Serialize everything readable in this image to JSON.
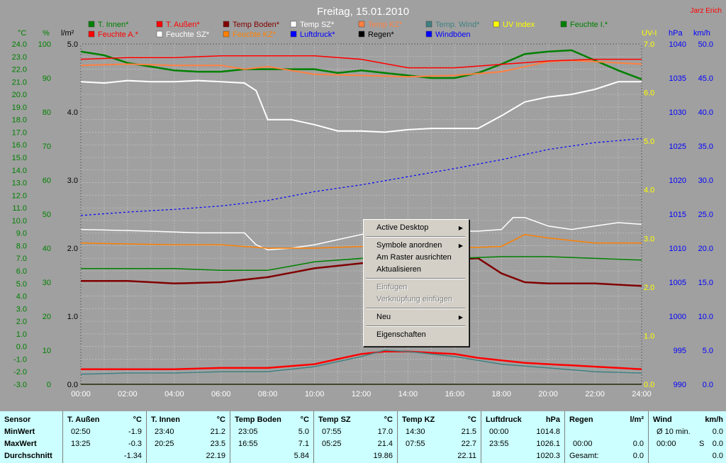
{
  "header": {
    "title": "Freitag, 15.01.2010",
    "author": "Jarz Erich"
  },
  "legend": [
    {
      "label": "T. Innen*",
      "color": "#008000"
    },
    {
      "label": "T. Außen*",
      "color": "#ff0000"
    },
    {
      "label": "Temp Boden*",
      "color": "#800000"
    },
    {
      "label": "Temp SZ*",
      "color": "#ffffff"
    },
    {
      "label": "Temp KZ*",
      "color": "#ff8040"
    },
    {
      "label": "Temp. Wind*",
      "color": "#408080"
    },
    {
      "label": "UV Index",
      "color": "#ffff00"
    },
    {
      "label": "Feuchte I.*",
      "color": "#008000"
    },
    {
      "label": "Feuchte A.*",
      "color": "#ff0000"
    },
    {
      "label": "Feuchte SZ*",
      "color": "#ffffff"
    },
    {
      "label": "Feuchte KZ*",
      "color": "#ff8000"
    },
    {
      "label": "Luftdruck*",
      "color": "#0000ff"
    },
    {
      "label": "Regen*",
      "color": "#000000"
    },
    {
      "label": "Windböen",
      "color": "#0000ff"
    }
  ],
  "axes": {
    "temp": {
      "unit": "°C",
      "color": "#008000",
      "ticks": [
        "24.0",
        "23.0",
        "22.0",
        "21.0",
        "20.0",
        "19.0",
        "18.0",
        "17.0",
        "16.0",
        "15.0",
        "14.0",
        "13.0",
        "12.0",
        "11.0",
        "10.0",
        "9.0",
        "8.0",
        "7.0",
        "6.0",
        "5.0",
        "4.0",
        "3.0",
        "2.0",
        "1.0",
        "0.0",
        "-1.0",
        "-2.0",
        "-3.0"
      ]
    },
    "humidity": {
      "unit": "%",
      "color": "#008000",
      "ticks": [
        "100",
        "90",
        "80",
        "70",
        "60",
        "50",
        "40",
        "30",
        "20",
        "10",
        "0"
      ]
    },
    "rain": {
      "unit": "l/m²",
      "color": "#000000",
      "ticks": [
        "5.0",
        "4.0",
        "3.0",
        "2.0",
        "1.0",
        "0.0"
      ]
    },
    "uv": {
      "unit": "UV-I",
      "color": "#ffff00",
      "ticks": [
        "7.0",
        "6.0",
        "5.0",
        "4.0",
        "3.0",
        "2.0",
        "1.0",
        "0.0"
      ]
    },
    "pressure": {
      "unit": "hPa",
      "color": "#0000ff",
      "ticks": [
        "1040",
        "1035",
        "1030",
        "1025",
        "1020",
        "1015",
        "1010",
        "1005",
        "1000",
        "995",
        "990"
      ]
    },
    "wind": {
      "unit": "km/h",
      "color": "#0000ff",
      "ticks": [
        "50.0",
        "45.0",
        "40.0",
        "35.0",
        "30.0",
        "25.0",
        "20.0",
        "15.0",
        "10.0",
        "5.0",
        "0.0"
      ]
    },
    "time": {
      "ticks": [
        "00:00",
        "02:00",
        "04:00",
        "06:00",
        "08:00",
        "10:00",
        "12:00",
        "14:00",
        "16:00",
        "18:00",
        "20:00",
        "22:00",
        "24:00"
      ]
    }
  },
  "chart_data": {
    "type": "line",
    "title": "Freitag, 15.01.2010",
    "x": [
      0,
      2,
      4,
      6,
      8,
      10,
      12,
      14,
      16,
      18,
      20,
      22,
      24
    ],
    "xticks": [
      "00:00",
      "02:00",
      "04:00",
      "06:00",
      "08:00",
      "10:00",
      "12:00",
      "14:00",
      "16:00",
      "18:00",
      "20:00",
      "22:00",
      "24:00"
    ],
    "xlim": [
      0,
      24
    ],
    "grid": true,
    "series": [
      {
        "name": "T. Innen*",
        "axis": "temp",
        "color": "#008000",
        "width": 2.5,
        "points": [
          [
            0,
            23.4
          ],
          [
            1,
            23.1
          ],
          [
            2,
            22.5
          ],
          [
            3,
            22.2
          ],
          [
            4,
            21.9
          ],
          [
            5,
            21.8
          ],
          [
            6,
            21.8
          ],
          [
            7,
            22.0
          ],
          [
            8,
            22.0
          ],
          [
            9,
            22.0
          ],
          [
            10,
            22.0
          ],
          [
            11,
            21.7
          ],
          [
            12,
            21.9
          ],
          [
            13,
            21.7
          ],
          [
            14,
            21.5
          ],
          [
            15,
            21.3
          ],
          [
            16,
            21.3
          ],
          [
            17,
            21.7
          ],
          [
            18,
            22.4
          ],
          [
            19,
            23.2
          ],
          [
            20,
            23.4
          ],
          [
            21,
            23.5
          ],
          [
            22,
            22.7
          ],
          [
            23,
            21.9
          ],
          [
            24,
            21.2
          ]
        ]
      },
      {
        "name": "T. Außen*",
        "axis": "temp",
        "color": "#ff0000",
        "width": 2.5,
        "points": [
          [
            0,
            -1.8
          ],
          [
            2,
            -1.8
          ],
          [
            4,
            -1.8
          ],
          [
            6,
            -1.7
          ],
          [
            8,
            -1.7
          ],
          [
            10,
            -1.4
          ],
          [
            11,
            -1.0
          ],
          [
            12,
            -0.6
          ],
          [
            13,
            -0.4
          ],
          [
            14,
            -0.4
          ],
          [
            15,
            -0.5
          ],
          [
            16,
            -0.6
          ],
          [
            17,
            -0.9
          ],
          [
            18,
            -1.1
          ],
          [
            19,
            -1.3
          ],
          [
            20,
            -1.4
          ],
          [
            21,
            -1.5
          ],
          [
            22,
            -1.6
          ],
          [
            23,
            -1.7
          ],
          [
            24,
            -1.8
          ]
        ]
      },
      {
        "name": "Temp Boden*",
        "axis": "temp",
        "color": "#800000",
        "width": 2.5,
        "points": [
          [
            0,
            5.2
          ],
          [
            2,
            5.2
          ],
          [
            4,
            5.0
          ],
          [
            6,
            5.1
          ],
          [
            8,
            5.5
          ],
          [
            10,
            6.2
          ],
          [
            12,
            6.6
          ],
          [
            14,
            6.7
          ],
          [
            16,
            6.9
          ],
          [
            17,
            7.0
          ],
          [
            18,
            5.8
          ],
          [
            19,
            5.1
          ],
          [
            20,
            5.0
          ],
          [
            22,
            5.0
          ],
          [
            24,
            4.8
          ]
        ]
      },
      {
        "name": "Temp SZ*",
        "axis": "temp",
        "color": "#ffffff",
        "width": 2,
        "points": [
          [
            0,
            21.0
          ],
          [
            1,
            20.9
          ],
          [
            2,
            21.1
          ],
          [
            3,
            21.0
          ],
          [
            4,
            21.0
          ],
          [
            5,
            21.1
          ],
          [
            6,
            21.0
          ],
          [
            7,
            20.9
          ],
          [
            7.5,
            20.3
          ],
          [
            8,
            18.0
          ],
          [
            9,
            18.0
          ],
          [
            10,
            17.6
          ],
          [
            11,
            17.1
          ],
          [
            12,
            17.1
          ],
          [
            13,
            17.0
          ],
          [
            14,
            17.2
          ],
          [
            15,
            17.3
          ],
          [
            16,
            17.3
          ],
          [
            17,
            17.3
          ],
          [
            18,
            18.3
          ],
          [
            19,
            19.4
          ],
          [
            20,
            19.8
          ],
          [
            21,
            20.0
          ],
          [
            22,
            20.4
          ],
          [
            23,
            21.0
          ],
          [
            24,
            21.0
          ]
        ]
      },
      {
        "name": "Temp KZ*",
        "axis": "temp",
        "color": "#ff8040",
        "width": 2,
        "points": [
          [
            0,
            22.3
          ],
          [
            2,
            22.4
          ],
          [
            4,
            22.3
          ],
          [
            6,
            22.3
          ],
          [
            7,
            22.0
          ],
          [
            8,
            22.2
          ],
          [
            9,
            21.9
          ],
          [
            10,
            21.6
          ],
          [
            12,
            21.5
          ],
          [
            14,
            21.4
          ],
          [
            16,
            21.5
          ],
          [
            18,
            21.8
          ],
          [
            20,
            22.6
          ],
          [
            21,
            22.7
          ],
          [
            22,
            22.6
          ],
          [
            24,
            22.4
          ]
        ]
      },
      {
        "name": "Temp. Wind*",
        "axis": "temp",
        "color": "#408080",
        "width": 1.5,
        "points": [
          [
            0,
            -2.2
          ],
          [
            2,
            -2.1
          ],
          [
            4,
            -2.1
          ],
          [
            6,
            -2.0
          ],
          [
            8,
            -2.0
          ],
          [
            10,
            -1.6
          ],
          [
            12,
            -0.8
          ],
          [
            13,
            -0.3
          ],
          [
            14,
            -0.4
          ],
          [
            15,
            -0.6
          ],
          [
            16,
            -0.8
          ],
          [
            18,
            -1.4
          ],
          [
            20,
            -1.7
          ],
          [
            22,
            -2.0
          ],
          [
            24,
            -2.1
          ]
        ]
      },
      {
        "name": "Feuchte I.*",
        "axis": "humidity",
        "color": "#008000",
        "width": 1.5,
        "points": [
          [
            0,
            34
          ],
          [
            4,
            34
          ],
          [
            6,
            33.5
          ],
          [
            8,
            33.5
          ],
          [
            10,
            36
          ],
          [
            12,
            37
          ],
          [
            14,
            37
          ],
          [
            16,
            37
          ],
          [
            18,
            37.5
          ],
          [
            20,
            37.5
          ],
          [
            22,
            37
          ],
          [
            24,
            36.5
          ]
        ]
      },
      {
        "name": "Feuchte A.*",
        "axis": "humidity",
        "color": "#ff0000",
        "width": 1.5,
        "points": [
          [
            0,
            95.5
          ],
          [
            2,
            96
          ],
          [
            4,
            96
          ],
          [
            6,
            96.5
          ],
          [
            8,
            96.5
          ],
          [
            10,
            96.5
          ],
          [
            12,
            95.5
          ],
          [
            14,
            93
          ],
          [
            16,
            93
          ],
          [
            18,
            94
          ],
          [
            20,
            95
          ],
          [
            22,
            95.5
          ],
          [
            24,
            95.5
          ]
        ]
      },
      {
        "name": "Feuchte SZ*",
        "axis": "humidity",
        "color": "#ffffff",
        "width": 1.5,
        "points": [
          [
            0,
            45.5
          ],
          [
            3,
            45
          ],
          [
            5,
            44.5
          ],
          [
            7,
            44.5
          ],
          [
            7.5,
            41
          ],
          [
            8,
            39.5
          ],
          [
            9,
            40
          ],
          [
            10,
            41
          ],
          [
            11,
            42.5
          ],
          [
            12,
            44
          ],
          [
            13,
            45
          ],
          [
            14,
            45
          ],
          [
            15,
            45
          ],
          [
            16,
            45
          ],
          [
            17,
            45
          ],
          [
            18,
            45.5
          ],
          [
            18.5,
            49
          ],
          [
            19,
            49
          ],
          [
            20,
            46.5
          ],
          [
            21,
            45.5
          ],
          [
            22,
            46.5
          ],
          [
            23,
            47.5
          ],
          [
            24,
            47
          ]
        ]
      },
      {
        "name": "Feuchte KZ*",
        "axis": "humidity",
        "color": "#ff8000",
        "width": 1.5,
        "points": [
          [
            0,
            41.5
          ],
          [
            4,
            41
          ],
          [
            6,
            41
          ],
          [
            7,
            40.5
          ],
          [
            8,
            40
          ],
          [
            10,
            40
          ],
          [
            12,
            40.5
          ],
          [
            14,
            40.5
          ],
          [
            16,
            40
          ],
          [
            18,
            40.5
          ],
          [
            19,
            44
          ],
          [
            20,
            43
          ],
          [
            22,
            41.5
          ],
          [
            24,
            41.5
          ]
        ]
      },
      {
        "name": "Luftdruck*",
        "axis": "pressure",
        "color": "#0000ff",
        "width": 1.2,
        "dashed": true,
        "points": [
          [
            0,
            1014.8
          ],
          [
            2,
            1015.3
          ],
          [
            4,
            1015.7
          ],
          [
            6,
            1016.2
          ],
          [
            8,
            1017.0
          ],
          [
            10,
            1018.3
          ],
          [
            12,
            1019.3
          ],
          [
            14,
            1020.5
          ],
          [
            16,
            1021.7
          ],
          [
            18,
            1023.0
          ],
          [
            20,
            1024.5
          ],
          [
            22,
            1025.5
          ],
          [
            24,
            1026.1
          ]
        ]
      },
      {
        "name": "UV Index",
        "axis": "uv",
        "color": "#ffff00",
        "width": 1.2,
        "points": [
          [
            0,
            0
          ],
          [
            24,
            0
          ]
        ]
      },
      {
        "name": "Regen*",
        "axis": "rain",
        "color": "#000000",
        "width": 1.2,
        "points": [
          [
            0,
            0
          ],
          [
            24,
            0
          ]
        ]
      }
    ]
  },
  "context_menu": {
    "items": [
      {
        "label": "Active Desktop",
        "submenu": true,
        "disabled": false
      },
      {
        "separator": true
      },
      {
        "label": "Symbole anordnen",
        "submenu": true,
        "disabled": false
      },
      {
        "label": "Am Raster ausrichten",
        "submenu": false,
        "disabled": false
      },
      {
        "label": "Aktualisieren",
        "submenu": false,
        "disabled": false
      },
      {
        "separator": true
      },
      {
        "label": "Einfügen",
        "submenu": false,
        "disabled": true
      },
      {
        "label": "Verknüpfung einfügen",
        "submenu": false,
        "disabled": true
      },
      {
        "separator": true
      },
      {
        "label": "Neu",
        "submenu": true,
        "disabled": false
      },
      {
        "separator": true
      },
      {
        "label": "Eigenschaften",
        "submenu": false,
        "disabled": false
      }
    ]
  },
  "stats": {
    "row_labels": {
      "sensor": "Sensor",
      "min": "MinWert",
      "max": "MaxWert",
      "avg": "Durchschnitt"
    },
    "columns": [
      {
        "title": "T. Außen",
        "unit": "°C",
        "min_time": "02:50",
        "min_val": "-1.9",
        "max_time": "13:25",
        "max_val": "-0.3",
        "avg": "-1.34"
      },
      {
        "title": "T. Innen",
        "unit": "°C",
        "min_time": "23:40",
        "min_val": "21.2",
        "max_time": "20:25",
        "max_val": "23.5",
        "avg": "22.19"
      },
      {
        "title": "Temp Boden",
        "unit": "°C",
        "min_time": "23:05",
        "min_val": "5.0",
        "max_time": "16:55",
        "max_val": "7.1",
        "avg": "5.84"
      },
      {
        "title": "Temp SZ",
        "unit": "°C",
        "min_time": "07:55",
        "min_val": "17.0",
        "max_time": "05:25",
        "max_val": "21.4",
        "avg": "19.86"
      },
      {
        "title": "Temp KZ",
        "unit": "°C",
        "min_time": "14:30",
        "min_val": "21.5",
        "max_time": "07:55",
        "max_val": "22.7",
        "avg": "22.11"
      },
      {
        "title": "Luftdruck",
        "unit": "hPa",
        "min_time": "00:00",
        "min_val": "1014.8",
        "max_time": "23:55",
        "max_val": "1026.1",
        "avg": "1020.3"
      }
    ],
    "regen": {
      "title": "Regen",
      "unit": "l/m²",
      "max_time": "00:00",
      "max_val": "0.0",
      "avg_label": "Gesamt:",
      "avg_val": "0.0"
    },
    "wind": {
      "title": "Wind",
      "unit": "km/h",
      "min_label": "Ø 10 min.",
      "min_val": "0.0",
      "max_time": "00:00",
      "max_dir": "S",
      "max_val": "0.0",
      "avg_val": "0.0"
    }
  }
}
